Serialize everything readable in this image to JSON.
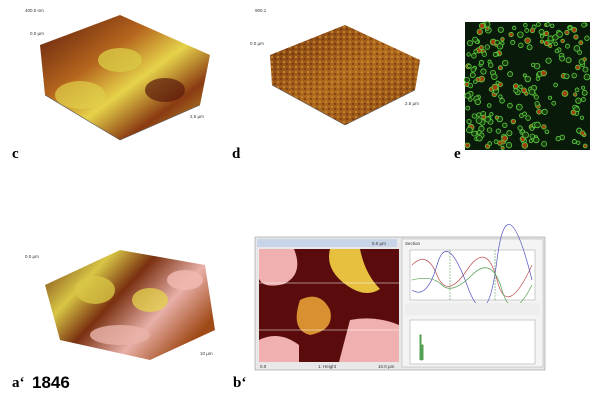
{
  "panels": {
    "c": {
      "label": "c",
      "axis_labels": [
        "400.0 nm",
        "0.0 µm",
        "2.5 µm"
      ]
    },
    "d": {
      "label": "d",
      "axis_labels": [
        "900.1",
        "0.0 µm",
        "2.5 µm"
      ]
    },
    "e": {
      "label": "e"
    },
    "a": {
      "label": "a‘",
      "number": "1846",
      "axis_labels": [
        "0.0 µm",
        "10 µm"
      ]
    },
    "b": {
      "label": "b‘",
      "footer": [
        "0.0",
        "1: Height",
        "10.0 µm"
      ],
      "header": "5.0 µm",
      "section_title": "Section"
    }
  }
}
